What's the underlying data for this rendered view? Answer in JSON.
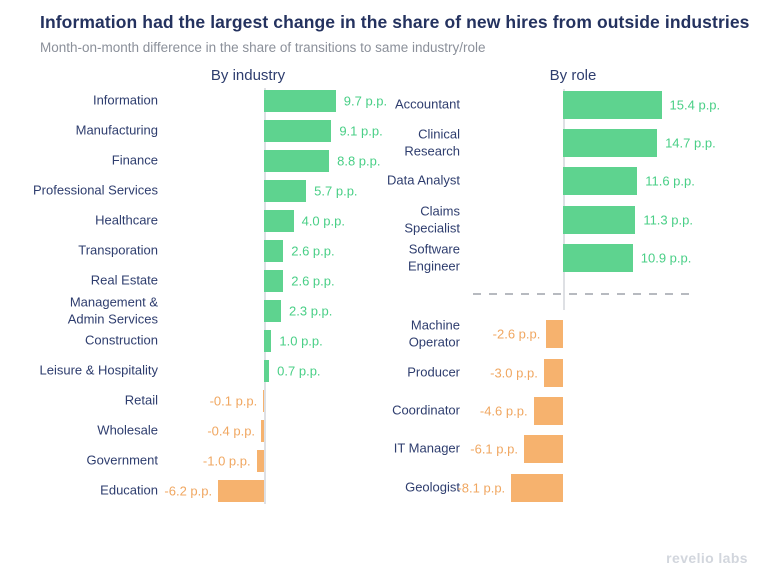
{
  "title": "Information had the largest change in the share of new hires from outside industries",
  "subtitle": "Month-on-month difference in the share of transitions to same industry/role",
  "footer": {
    "logo_text": "revelio labs"
  },
  "colors": {
    "positive_bar": "#5ed38f",
    "positive_text": "#49cf86",
    "negative_bar": "#f6b26e",
    "negative_text": "#f0a761",
    "title_text": "#24325f",
    "subtitle_text": "#8b909a",
    "category_text": "#2e3d6e",
    "baseline": "#dee0e4",
    "divider": "#b7bac0",
    "logo_text": "#d2d6dd"
  },
  "chart_data": [
    {
      "type": "bar",
      "orientation": "horizontal",
      "title": "By industry",
      "unit": "p.p.",
      "xlim": [
        -10,
        14
      ],
      "grid": false,
      "categories": [
        "Information",
        "Manufacturing",
        "Finance",
        "Professional Services",
        "Healthcare",
        "Transporation",
        "Real Estate",
        "Management &\nAdmin Services",
        "Construction",
        "Leisure & Hospitality",
        "Retail",
        "Wholesale",
        "Government",
        "Education"
      ],
      "values": [
        9.7,
        9.1,
        8.8,
        5.7,
        4.0,
        2.6,
        2.6,
        2.3,
        1.0,
        0.7,
        -0.1,
        -0.4,
        -1.0,
        -6.2
      ],
      "value_labels": [
        "9.7 p.p.",
        "9.1 p.p.",
        "8.8 p.p.",
        "5.7 p.p.",
        "4.0 p.p.",
        "2.6 p.p.",
        "2.6 p.p.",
        "2.3 p.p.",
        "1.0 p.p.",
        "0.7 p.p.",
        "-0.1 p.p.",
        "-0.4 p.p.",
        "-1.0 p.p.",
        "-6.2 p.p."
      ]
    },
    {
      "type": "bar",
      "orientation": "horizontal",
      "title": "By role",
      "unit": "p.p.",
      "xlim": [
        -12,
        18
      ],
      "grid": false,
      "divider_after_index": 4,
      "categories": [
        "Accountant",
        "Clinical\nResearch",
        "Data Analyst",
        "Claims\nSpecialist",
        "Software\nEngineer",
        "Machine\nOperator",
        "Producer",
        "Coordinator",
        "IT Manager",
        "Geologist"
      ],
      "values": [
        15.4,
        14.7,
        11.6,
        11.3,
        10.9,
        -2.6,
        -3.0,
        -4.6,
        -6.1,
        -8.1
      ],
      "value_labels": [
        "15.4 p.p.",
        "14.7 p.p.",
        "11.6 p.p.",
        "11.3 p.p.",
        "10.9 p.p.",
        "-2.6 p.p.",
        "-3.0 p.p.",
        "-4.6 p.p.",
        "-6.1 p.p.",
        "-8.1 p.p."
      ]
    }
  ]
}
